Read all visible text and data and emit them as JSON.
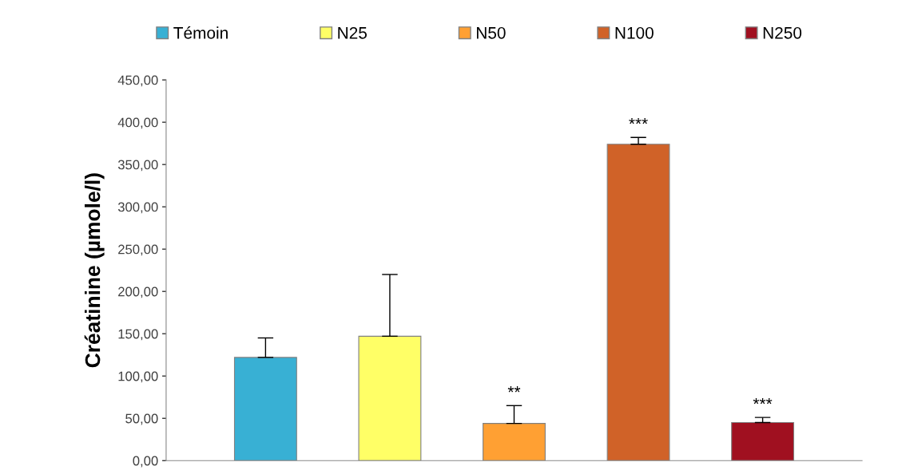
{
  "chart_data": {
    "type": "bar",
    "ylabel": "Créatinine (µmole/l)",
    "categories": [
      null,
      null,
      null,
      null,
      null
    ],
    "series": [
      {
        "name": "Témoin",
        "color": "#38b0d4",
        "values": [
          122,
          null,
          null,
          null,
          null
        ],
        "errors": [
          23,
          null,
          null,
          null,
          null
        ]
      },
      {
        "name": "N25",
        "color": "#ffff66",
        "values": [
          null,
          147,
          null,
          null,
          null
        ],
        "errors": [
          null,
          73,
          null,
          null,
          null
        ]
      },
      {
        "name": "N50",
        "color": "#ffa033",
        "values": [
          null,
          null,
          44,
          null,
          null
        ],
        "errors": [
          null,
          null,
          21,
          null,
          null
        ]
      },
      {
        "name": "N100",
        "color": "#d06228",
        "values": [
          null,
          null,
          null,
          374,
          null
        ],
        "errors": [
          null,
          null,
          null,
          8,
          null
        ]
      },
      {
        "name": "N250",
        "color": "#a01020",
        "values": [
          null,
          null,
          null,
          null,
          45
        ],
        "errors": [
          null,
          null,
          null,
          null,
          6
        ]
      }
    ],
    "ylim": [
      0,
      450
    ],
    "yticks": [
      {
        "value": 0,
        "label": "0,00"
      },
      {
        "value": 50,
        "label": "50,00"
      },
      {
        "value": 100,
        "label": "100,00"
      },
      {
        "value": 150,
        "label": "150,00"
      },
      {
        "value": 200,
        "label": "200,00"
      },
      {
        "value": 250,
        "label": "250,00"
      },
      {
        "value": 300,
        "label": "300,00"
      },
      {
        "value": 350,
        "label": "350,00"
      },
      {
        "value": 400,
        "label": "400,00"
      },
      {
        "value": 450,
        "label": "450,00"
      }
    ],
    "annotations": [
      {
        "text": "**",
        "y": 65
      },
      {
        "text": "***",
        "y": 382
      },
      {
        "text": "***",
        "y": 51
      }
    ],
    "legend": "top",
    "grid": false
  }
}
